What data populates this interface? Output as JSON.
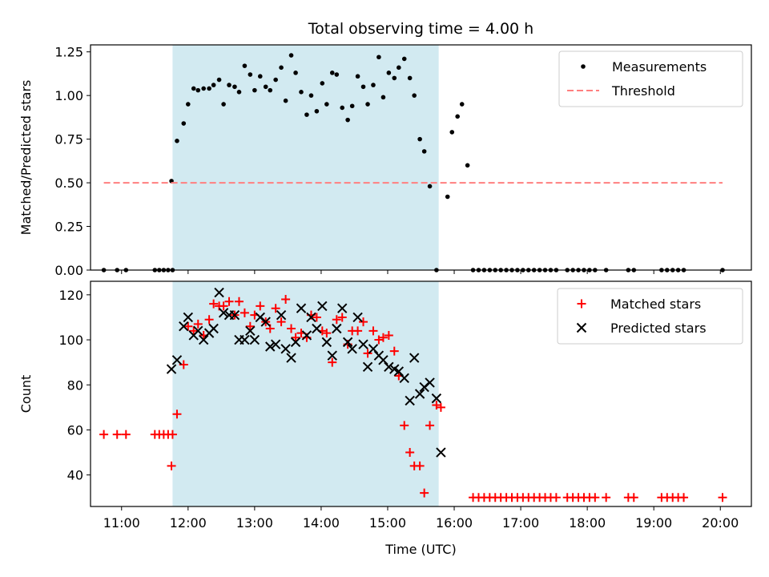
{
  "chart_data": [
    {
      "type": "scatter",
      "title": "Total observing time = 4.00 h",
      "xlabel": "",
      "ylabel": "Matched/Predicted stars",
      "xlim": [
        "10:32",
        "20:28"
      ],
      "ylim": [
        0,
        1.29
      ],
      "yticks": [
        "0.00",
        "0.25",
        "0.50",
        "0.75",
        "1.00",
        "1.25"
      ],
      "ytick_values": [
        0,
        0.25,
        0.5,
        0.75,
        1.0,
        1.25
      ],
      "legend_position": "upper right",
      "shaded_interval": [
        "11:46",
        "15:46"
      ],
      "colors": {
        "measurements": "#000000",
        "threshold": "#ff7f7f",
        "shade": "#add8e6"
      },
      "series": [
        {
          "name": "Measurements",
          "marker": "dot",
          "points": [
            [
              "10:44",
              0
            ],
            [
              "10:56",
              0
            ],
            [
              "11:04",
              0
            ],
            [
              "11:30",
              0
            ],
            [
              "11:34",
              0
            ],
            [
              "11:38",
              0
            ],
            [
              "11:42",
              0
            ],
            [
              "11:46",
              0
            ],
            [
              "11:45",
              0.51
            ],
            [
              "11:50",
              0.74
            ],
            [
              "11:56",
              0.84
            ],
            [
              "12:00",
              0.95
            ],
            [
              "12:05",
              1.04
            ],
            [
              "12:09",
              1.03
            ],
            [
              "12:14",
              1.04
            ],
            [
              "12:19",
              1.04
            ],
            [
              "12:23",
              1.06
            ],
            [
              "12:28",
              1.09
            ],
            [
              "12:32",
              0.95
            ],
            [
              "12:37",
              1.06
            ],
            [
              "12:42",
              1.05
            ],
            [
              "12:46",
              1.02
            ],
            [
              "12:51",
              1.17
            ],
            [
              "12:56",
              1.12
            ],
            [
              "13:00",
              1.03
            ],
            [
              "13:05",
              1.11
            ],
            [
              "13:10",
              1.05
            ],
            [
              "13:14",
              1.03
            ],
            [
              "13:19",
              1.09
            ],
            [
              "13:24",
              1.16
            ],
            [
              "13:28",
              0.97
            ],
            [
              "13:33",
              1.23
            ],
            [
              "13:37",
              1.13
            ],
            [
              "13:42",
              1.02
            ],
            [
              "13:47",
              0.89
            ],
            [
              "13:51",
              1.0
            ],
            [
              "13:56",
              0.91
            ],
            [
              "14:01",
              1.07
            ],
            [
              "14:05",
              0.95
            ],
            [
              "14:10",
              1.13
            ],
            [
              "14:14",
              1.12
            ],
            [
              "14:19",
              0.93
            ],
            [
              "14:24",
              0.86
            ],
            [
              "14:28",
              0.94
            ],
            [
              "14:33",
              1.11
            ],
            [
              "14:38",
              1.05
            ],
            [
              "14:42",
              0.95
            ],
            [
              "14:47",
              1.06
            ],
            [
              "14:52",
              1.22
            ],
            [
              "14:56",
              0.99
            ],
            [
              "15:01",
              1.13
            ],
            [
              "15:06",
              1.1
            ],
            [
              "15:10",
              1.16
            ],
            [
              "15:15",
              1.21
            ],
            [
              "15:20",
              1.1
            ],
            [
              "15:24",
              1.0
            ],
            [
              "15:29",
              0.75
            ],
            [
              "15:33",
              0.68
            ],
            [
              "15:38",
              0.48
            ],
            [
              "15:44",
              0
            ],
            [
              "15:54",
              0.42
            ],
            [
              "15:58",
              0.79
            ],
            [
              "16:03",
              0.88
            ],
            [
              "16:07",
              0.95
            ],
            [
              "16:12",
              0.6
            ],
            [
              "16:17",
              0
            ],
            [
              "16:22",
              0
            ],
            [
              "16:27",
              0
            ],
            [
              "16:32",
              0
            ],
            [
              "16:37",
              0
            ],
            [
              "16:42",
              0
            ],
            [
              "16:47",
              0
            ],
            [
              "16:52",
              0
            ],
            [
              "16:57",
              0
            ],
            [
              "17:02",
              0
            ],
            [
              "17:07",
              0
            ],
            [
              "17:12",
              0
            ],
            [
              "17:17",
              0
            ],
            [
              "17:22",
              0
            ],
            [
              "17:27",
              0
            ],
            [
              "17:32",
              0
            ],
            [
              "17:42",
              0
            ],
            [
              "17:47",
              0
            ],
            [
              "17:52",
              0
            ],
            [
              "17:57",
              0
            ],
            [
              "18:02",
              0
            ],
            [
              "18:07",
              0
            ],
            [
              "18:17",
              0
            ],
            [
              "18:37",
              0
            ],
            [
              "18:42",
              0
            ],
            [
              "19:07",
              0
            ],
            [
              "19:12",
              0
            ],
            [
              "19:17",
              0
            ],
            [
              "19:22",
              0
            ],
            [
              "19:27",
              0
            ],
            [
              "20:02",
              0
            ]
          ]
        },
        {
          "name": "Threshold",
          "style": "dashed",
          "points": [
            [
              "10:44",
              0.5
            ],
            [
              "20:02",
              0.5
            ]
          ]
        }
      ]
    },
    {
      "type": "scatter",
      "title": "",
      "xlabel": "Time (UTC)",
      "ylabel": "Count",
      "xlim": [
        "10:32",
        "20:28"
      ],
      "ylim": [
        26,
        126
      ],
      "yticks": [
        "40",
        "60",
        "80",
        "100",
        "120"
      ],
      "ytick_values": [
        40,
        60,
        80,
        100,
        120
      ],
      "xticks": [
        "11:00",
        "12:00",
        "13:00",
        "14:00",
        "15:00",
        "16:00",
        "17:00",
        "18:00",
        "19:00",
        "20:00"
      ],
      "legend_position": "upper right",
      "shaded_interval": [
        "11:46",
        "15:46"
      ],
      "colors": {
        "matched": "#ff0000",
        "predicted": "#000000",
        "shade": "#add8e6"
      },
      "series": [
        {
          "name": "Matched stars",
          "marker": "plus",
          "points": [
            [
              "10:44",
              58
            ],
            [
              "10:56",
              58
            ],
            [
              "11:04",
              58
            ],
            [
              "11:30",
              58
            ],
            [
              "11:34",
              58
            ],
            [
              "11:38",
              58
            ],
            [
              "11:42",
              58
            ],
            [
              "11:46",
              58
            ],
            [
              "11:45",
              44
            ],
            [
              "11:50",
              67
            ],
            [
              "11:56",
              89
            ],
            [
              "12:00",
              106
            ],
            [
              "12:05",
              104
            ],
            [
              "12:09",
              107
            ],
            [
              "12:14",
              102
            ],
            [
              "12:19",
              109
            ],
            [
              "12:23",
              116
            ],
            [
              "12:28",
              115
            ],
            [
              "12:32",
              115
            ],
            [
              "12:37",
              117
            ],
            [
              "12:42",
              111
            ],
            [
              "12:46",
              117
            ],
            [
              "12:51",
              112
            ],
            [
              "12:56",
              106
            ],
            [
              "13:00",
              111
            ],
            [
              "13:05",
              115
            ],
            [
              "13:10",
              108
            ],
            [
              "13:14",
              105
            ],
            [
              "13:19",
              114
            ],
            [
              "13:24",
              108
            ],
            [
              "13:28",
              118
            ],
            [
              "13:33",
              105
            ],
            [
              "13:37",
              101
            ],
            [
              "13:42",
              103
            ],
            [
              "13:47",
              101
            ],
            [
              "13:51",
              111
            ],
            [
              "13:56",
              110
            ],
            [
              "14:01",
              104
            ],
            [
              "14:05",
              103
            ],
            [
              "14:10",
              90
            ],
            [
              "14:14",
              109
            ],
            [
              "14:19",
              110
            ],
            [
              "14:24",
              98
            ],
            [
              "14:28",
              104
            ],
            [
              "14:33",
              104
            ],
            [
              "14:38",
              108
            ],
            [
              "14:42",
              94
            ],
            [
              "14:47",
              104
            ],
            [
              "14:52",
              100
            ],
            [
              "14:56",
              101
            ],
            [
              "15:01",
              102
            ],
            [
              "15:06",
              95
            ],
            [
              "15:10",
              84
            ],
            [
              "15:15",
              62
            ],
            [
              "15:20",
              50
            ],
            [
              "15:24",
              44
            ],
            [
              "15:29",
              44
            ],
            [
              "15:33",
              32
            ],
            [
              "15:38",
              62
            ],
            [
              "15:44",
              71
            ],
            [
              "15:48",
              70
            ],
            [
              "16:17",
              30
            ],
            [
              "16:22",
              30
            ],
            [
              "16:27",
              30
            ],
            [
              "16:32",
              30
            ],
            [
              "16:37",
              30
            ],
            [
              "16:42",
              30
            ],
            [
              "16:47",
              30
            ],
            [
              "16:52",
              30
            ],
            [
              "16:57",
              30
            ],
            [
              "17:02",
              30
            ],
            [
              "17:07",
              30
            ],
            [
              "17:12",
              30
            ],
            [
              "17:17",
              30
            ],
            [
              "17:22",
              30
            ],
            [
              "17:27",
              30
            ],
            [
              "17:32",
              30
            ],
            [
              "17:42",
              30
            ],
            [
              "17:47",
              30
            ],
            [
              "17:52",
              30
            ],
            [
              "17:57",
              30
            ],
            [
              "18:02",
              30
            ],
            [
              "18:07",
              30
            ],
            [
              "18:17",
              30
            ],
            [
              "18:37",
              30
            ],
            [
              "18:42",
              30
            ],
            [
              "19:07",
              30
            ],
            [
              "19:12",
              30
            ],
            [
              "19:17",
              30
            ],
            [
              "19:22",
              30
            ],
            [
              "19:27",
              30
            ],
            [
              "20:02",
              30
            ]
          ]
        },
        {
          "name": "Predicted stars",
          "marker": "x",
          "points": [
            [
              "11:45",
              87
            ],
            [
              "11:50",
              91
            ],
            [
              "11:56",
              106
            ],
            [
              "12:00",
              110
            ],
            [
              "12:05",
              102
            ],
            [
              "12:09",
              104
            ],
            [
              "12:14",
              100
            ],
            [
              "12:19",
              103
            ],
            [
              "12:23",
              105
            ],
            [
              "12:28",
              121
            ],
            [
              "12:32",
              112
            ],
            [
              "12:37",
              111
            ],
            [
              "12:42",
              111
            ],
            [
              "12:46",
              100
            ],
            [
              "12:51",
              100
            ],
            [
              "12:56",
              104
            ],
            [
              "13:00",
              100
            ],
            [
              "13:05",
              110
            ],
            [
              "13:10",
              108
            ],
            [
              "13:14",
              97
            ],
            [
              "13:19",
              98
            ],
            [
              "13:24",
              111
            ],
            [
              "13:28",
              96
            ],
            [
              "13:33",
              92
            ],
            [
              "13:37",
              99
            ],
            [
              "13:42",
              114
            ],
            [
              "13:47",
              102
            ],
            [
              "13:51",
              110
            ],
            [
              "13:56",
              105
            ],
            [
              "14:01",
              115
            ],
            [
              "14:05",
              99
            ],
            [
              "14:10",
              93
            ],
            [
              "14:14",
              105
            ],
            [
              "14:19",
              114
            ],
            [
              "14:24",
              99
            ],
            [
              "14:28",
              96
            ],
            [
              "14:33",
              110
            ],
            [
              "14:38",
              98
            ],
            [
              "14:42",
              88
            ],
            [
              "14:47",
              96
            ],
            [
              "14:52",
              93
            ],
            [
              "14:56",
              91
            ],
            [
              "15:01",
              88
            ],
            [
              "15:06",
              87
            ],
            [
              "15:10",
              86
            ],
            [
              "15:15",
              83
            ],
            [
              "15:20",
              73
            ],
            [
              "15:24",
              92
            ],
            [
              "15:29",
              76
            ],
            [
              "15:33",
              79
            ],
            [
              "15:38",
              81
            ],
            [
              "15:44",
              74
            ],
            [
              "15:48",
              50
            ]
          ]
        }
      ]
    }
  ]
}
